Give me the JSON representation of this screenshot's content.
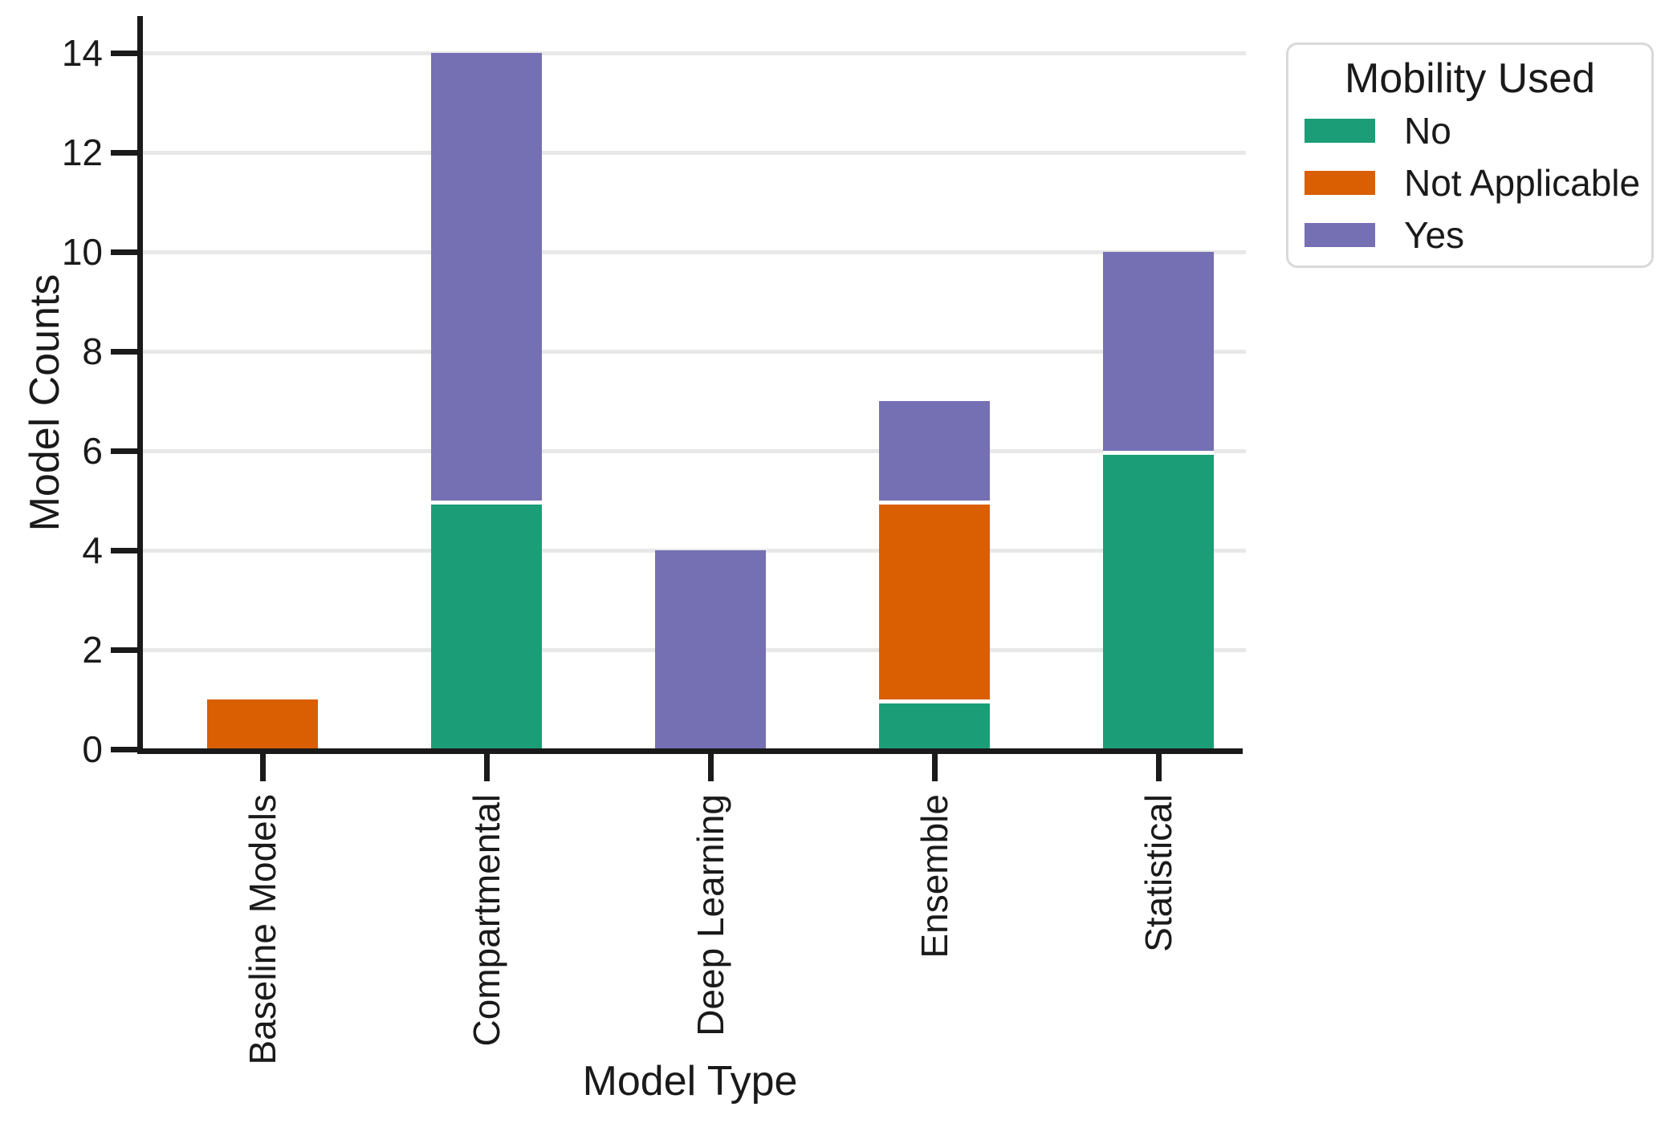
{
  "chart_data": {
    "type": "bar",
    "stacked": true,
    "title": "",
    "xlabel": "Model Type",
    "ylabel": "Model Counts",
    "categories": [
      "Baseline Models",
      "Compartmental",
      "Deep Learning",
      "Ensemble",
      "Statistical"
    ],
    "series": [
      {
        "name": "No",
        "color": "#1b9e77",
        "values": [
          0,
          5,
          0,
          1,
          6
        ]
      },
      {
        "name": "Not Applicable",
        "color": "#d95f02",
        "values": [
          1,
          0,
          0,
          4,
          0
        ]
      },
      {
        "name": "Yes",
        "color": "#7570b3",
        "values": [
          0,
          9,
          4,
          2,
          4
        ]
      }
    ],
    "stack_totals": [
      1,
      14,
      4,
      7,
      10
    ],
    "yticks": [
      0,
      2,
      4,
      6,
      8,
      10,
      12,
      14
    ],
    "ylim": [
      0,
      14.7
    ],
    "legend_title": "Mobility Used",
    "legend_position": "upper-right",
    "grid": "horizontal",
    "colors": {
      "axis": "#1a1a1a",
      "gridline": "#e8e8e8",
      "legend_border": "#d9d9d9",
      "background": "#ffffff",
      "segment_divider": "#ffffff"
    }
  }
}
